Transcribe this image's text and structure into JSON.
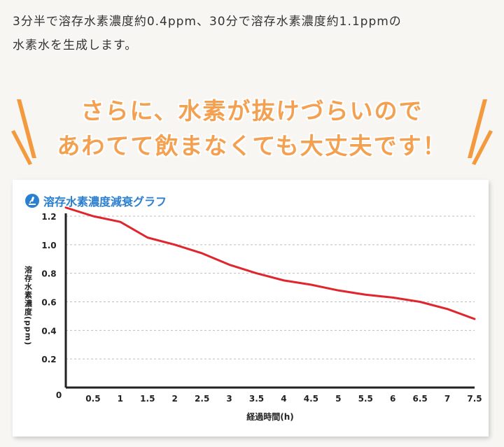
{
  "intro": {
    "line1": "3分半で溶存水素濃度約0.4ppm、30分で溶存水素濃度約1.1ppmの",
    "line2": "水素水を生成します。"
  },
  "headline": {
    "line1": "さらに、水素が抜けづらいので",
    "line2": "あわてて飲まなくても大丈夫です！"
  },
  "colors": {
    "headline": "#f3a050",
    "burst": "#f39a3e",
    "chart_title": "#2a7fd0",
    "line": "#e0252c",
    "grid": "#bdbdbd",
    "axis": "#222222"
  },
  "chart_data": {
    "type": "line",
    "title": "溶存水素濃度減衰グラフ",
    "xlabel": "経過時間(h)",
    "ylabel": "溶存水素濃度(ppm)",
    "xlim": [
      0,
      7.5
    ],
    "ylim": [
      0,
      1.2
    ],
    "x_ticks": [
      "0.5",
      "1",
      "1.5",
      "2",
      "2.5",
      "3",
      "3.5",
      "4",
      "4.5",
      "5",
      "5.5",
      "6",
      "6.5",
      "7",
      "7.5"
    ],
    "y_ticks": [
      "0.2",
      "0.4",
      "0.6",
      "0.8",
      "1.0",
      "1.2"
    ],
    "origin_label": "0",
    "grid": "horizontal-dashed",
    "x": [
      0,
      0.5,
      1,
      1.5,
      2,
      2.5,
      3,
      3.5,
      4,
      4.5,
      5,
      5.5,
      6,
      6.5,
      7,
      7.5
    ],
    "y": [
      1.26,
      1.2,
      1.16,
      1.05,
      1.0,
      0.94,
      0.86,
      0.8,
      0.75,
      0.72,
      0.68,
      0.65,
      0.63,
      0.6,
      0.55,
      0.48
    ]
  }
}
